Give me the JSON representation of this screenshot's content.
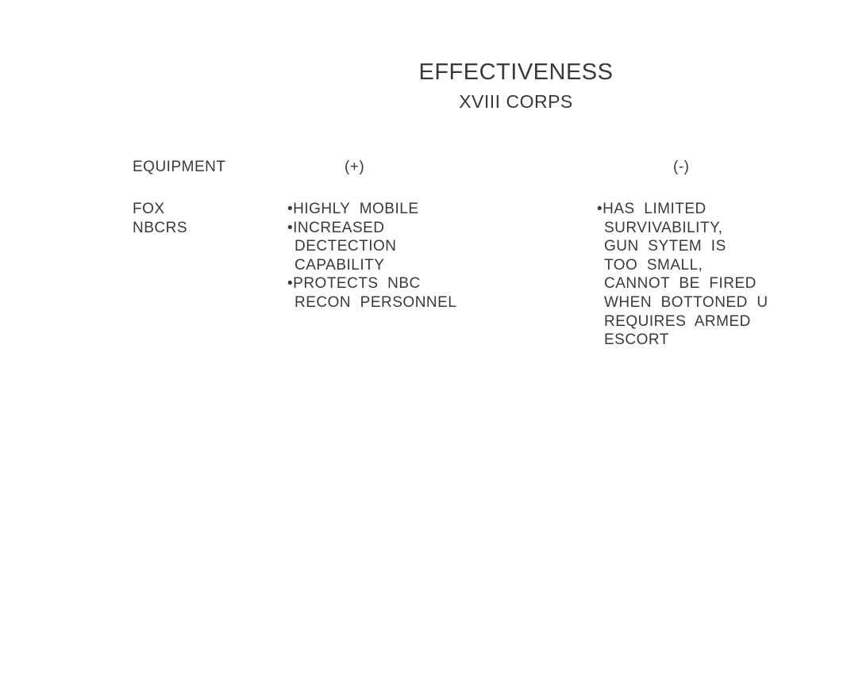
{
  "title": "EFFECTIVENESS",
  "subtitle": "XVIII CORPS",
  "headers": {
    "equipment": "EQUIPMENT",
    "plus": "(+)",
    "minus": "(-)"
  },
  "equipment": [
    "FOX",
    "NBCRS"
  ],
  "plus_lines": [
    {
      "text": "•HIGHLY  MOBILE",
      "bullet": true
    },
    {
      "text": "•INCREASED",
      "bullet": true
    },
    {
      "text": "DECTECTION",
      "bullet": false
    },
    {
      "text": "CAPABILITY",
      "bullet": false
    },
    {
      "text": "•PROTECTS  NBC",
      "bullet": true
    },
    {
      "text": "RECON  PERSONNEL",
      "bullet": false
    }
  ],
  "minus_lines": [
    {
      "text": "•HAS  LIMITED",
      "bullet": true
    },
    {
      "text": "SURVIVABILITY,",
      "bullet": false
    },
    {
      "text": "GUN  SYTEM  IS",
      "bullet": false
    },
    {
      "text": "TOO  SMALL,",
      "bullet": false
    },
    {
      "text": "CANNOT  BE  FIRED",
      "bullet": false
    },
    {
      "text": "WHEN  BOTTONED  U",
      "bullet": false
    },
    {
      "text": "REQUIRES  ARMED",
      "bullet": false
    },
    {
      "text": "ESCORT",
      "bullet": false
    }
  ]
}
